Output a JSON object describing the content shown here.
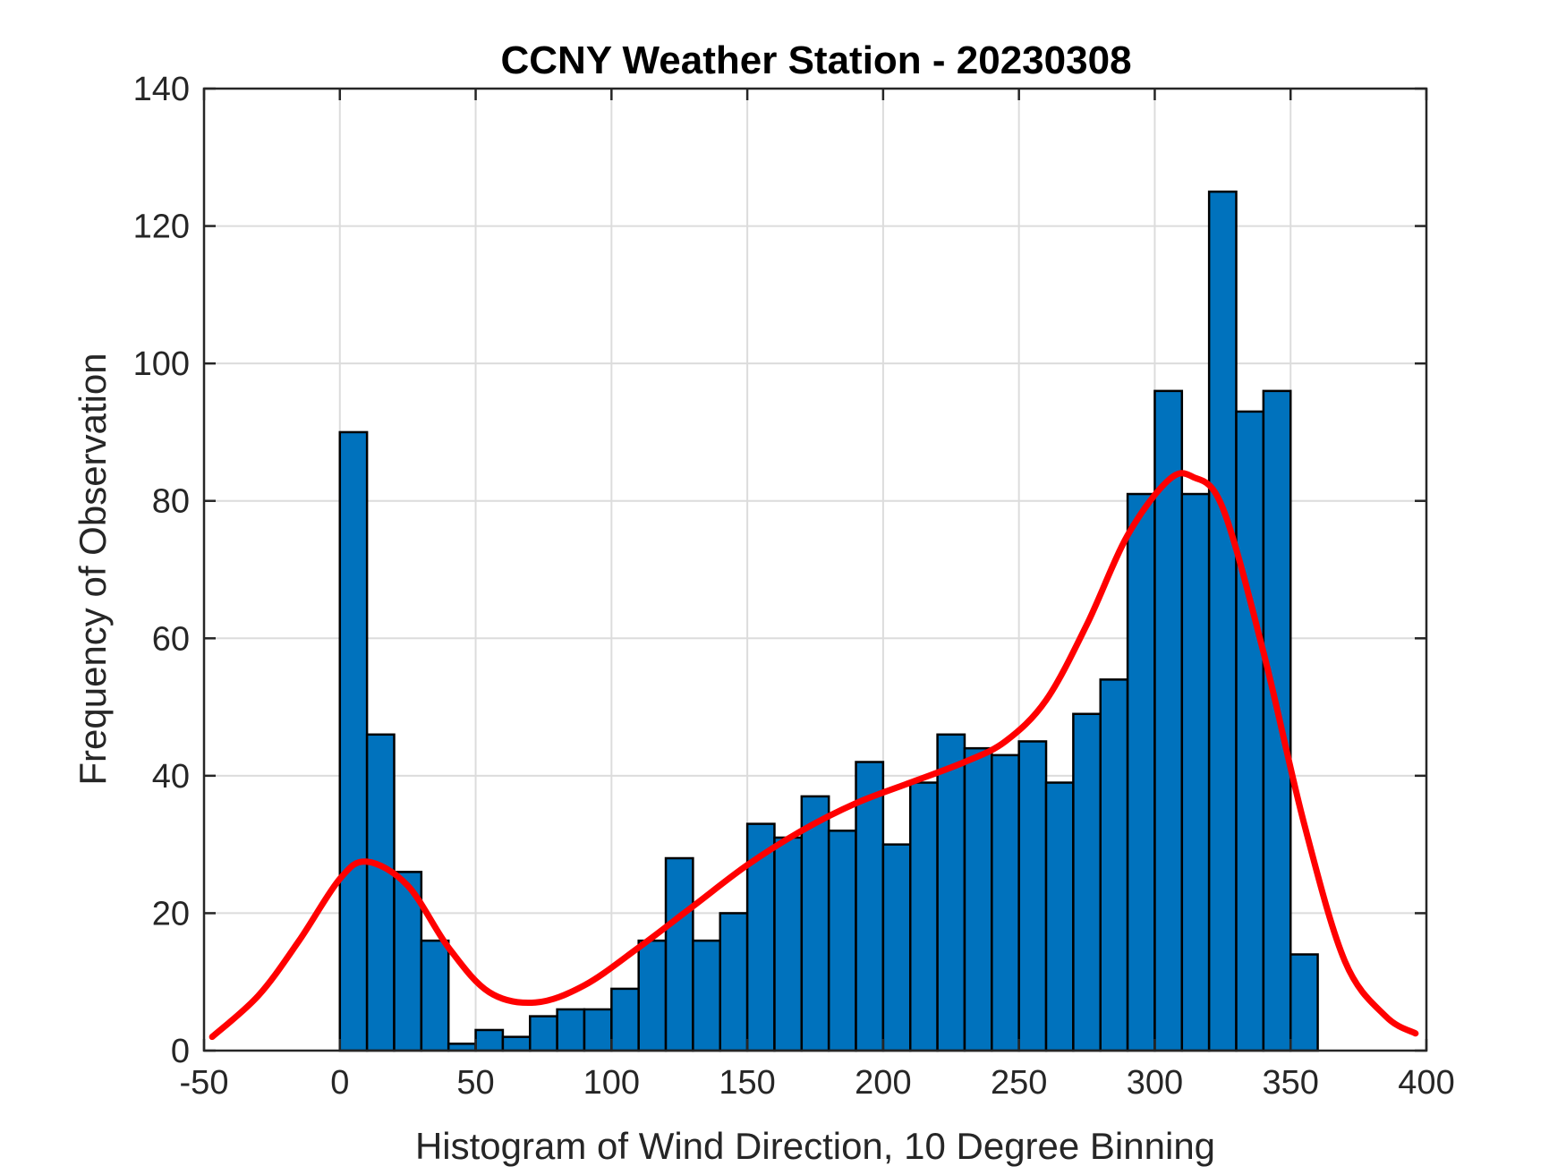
{
  "chart_data": {
    "type": "bar",
    "title": "CCNY Weather Station - 20230308",
    "xlabel": "Histogram of Wind Direction, 10 Degree Binning",
    "ylabel": "Frequency of Observation",
    "xlim": [
      -50,
      400
    ],
    "ylim": [
      0,
      140
    ],
    "xticks": [
      -50,
      0,
      50,
      100,
      150,
      200,
      250,
      300,
      350,
      400
    ],
    "yticks": [
      0,
      20,
      40,
      60,
      80,
      100,
      120,
      140
    ],
    "grid": true,
    "bar_color": "#0072BD",
    "bar_edge_color": "#000000",
    "bin_width": 10,
    "bins": [
      {
        "x0": 0,
        "x1": 10,
        "value": 90
      },
      {
        "x0": 10,
        "x1": 20,
        "value": 46
      },
      {
        "x0": 20,
        "x1": 30,
        "value": 26
      },
      {
        "x0": 30,
        "x1": 40,
        "value": 16
      },
      {
        "x0": 40,
        "x1": 50,
        "value": 1
      },
      {
        "x0": 50,
        "x1": 60,
        "value": 3
      },
      {
        "x0": 60,
        "x1": 70,
        "value": 2
      },
      {
        "x0": 70,
        "x1": 80,
        "value": 5
      },
      {
        "x0": 80,
        "x1": 90,
        "value": 6
      },
      {
        "x0": 90,
        "x1": 100,
        "value": 6
      },
      {
        "x0": 100,
        "x1": 110,
        "value": 9
      },
      {
        "x0": 110,
        "x1": 120,
        "value": 16
      },
      {
        "x0": 120,
        "x1": 130,
        "value": 28
      },
      {
        "x0": 130,
        "x1": 140,
        "value": 16
      },
      {
        "x0": 140,
        "x1": 150,
        "value": 20
      },
      {
        "x0": 150,
        "x1": 160,
        "value": 33
      },
      {
        "x0": 160,
        "x1": 170,
        "value": 31
      },
      {
        "x0": 170,
        "x1": 180,
        "value": 37
      },
      {
        "x0": 180,
        "x1": 190,
        "value": 32
      },
      {
        "x0": 190,
        "x1": 200,
        "value": 42
      },
      {
        "x0": 200,
        "x1": 210,
        "value": 30
      },
      {
        "x0": 210,
        "x1": 220,
        "value": 39
      },
      {
        "x0": 220,
        "x1": 230,
        "value": 46
      },
      {
        "x0": 230,
        "x1": 240,
        "value": 44
      },
      {
        "x0": 240,
        "x1": 250,
        "value": 43
      },
      {
        "x0": 250,
        "x1": 260,
        "value": 45
      },
      {
        "x0": 260,
        "x1": 270,
        "value": 39
      },
      {
        "x0": 270,
        "x1": 280,
        "value": 49
      },
      {
        "x0": 280,
        "x1": 290,
        "value": 54
      },
      {
        "x0": 290,
        "x1": 300,
        "value": 81
      },
      {
        "x0": 300,
        "x1": 310,
        "value": 96
      },
      {
        "x0": 310,
        "x1": 320,
        "value": 81
      },
      {
        "x0": 320,
        "x1": 330,
        "value": 125
      },
      {
        "x0": 330,
        "x1": 340,
        "value": 93
      },
      {
        "x0": 340,
        "x1": 350,
        "value": 96
      },
      {
        "x0": 350,
        "x1": 360,
        "value": 14
      }
    ],
    "fit_curve": {
      "color": "#FF0000",
      "x": [
        -47,
        -30,
        -15,
        0,
        10,
        25,
        40,
        55,
        72,
        90,
        110,
        130,
        150,
        170,
        190,
        210,
        230,
        245,
        260,
        275,
        290,
        305,
        314,
        325,
        340,
        355,
        370,
        385,
        396
      ],
      "y": [
        2,
        8,
        16,
        25,
        27.5,
        24,
        15,
        8.5,
        7,
        9.5,
        15,
        21,
        27,
        32,
        36,
        39,
        42,
        45,
        51,
        62,
        75,
        83,
        83.5,
        79,
        58,
        33,
        13,
        5,
        2.5
      ]
    }
  }
}
